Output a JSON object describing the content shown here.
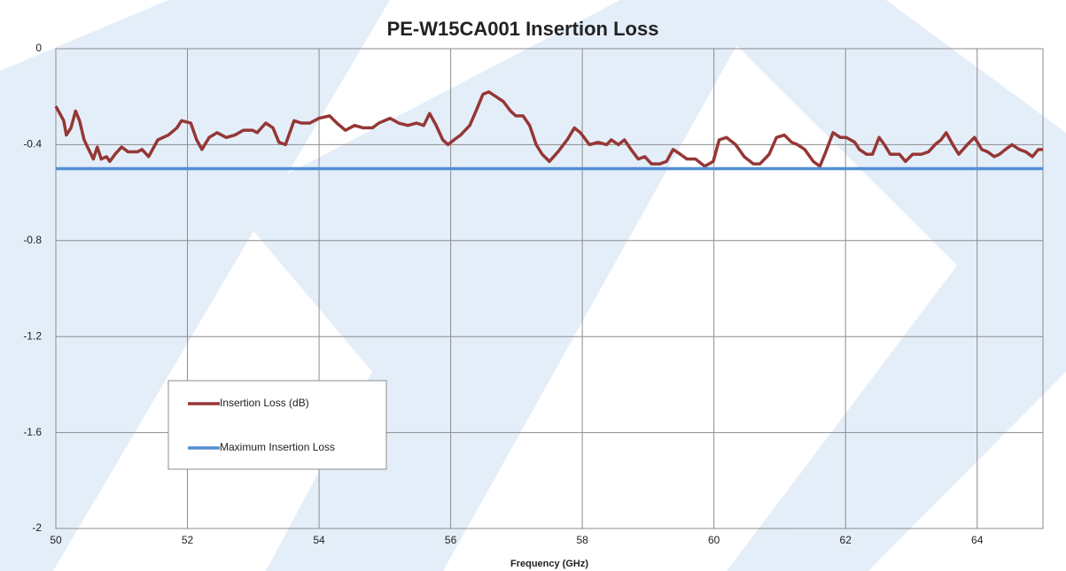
{
  "chart_data": {
    "type": "line",
    "title": "PE-W15CA001 Insertion Loss",
    "xlabel": "Frequency (GHz)",
    "xlim": [
      50,
      65
    ],
    "xticks": [
      50,
      52,
      54,
      56,
      58,
      60,
      62,
      64
    ],
    "ylim": [
      -2,
      0
    ],
    "yticks": [
      0,
      -0.4,
      -0.8,
      -1.2,
      -1.6,
      -2
    ],
    "grid": true,
    "legend": "left",
    "series": [
      {
        "name": "Insertion Loss (dB)",
        "color": "#953735",
        "x": [
          50.0,
          50.12,
          50.16,
          50.23,
          50.3,
          50.36,
          50.43,
          50.5,
          50.57,
          50.63,
          50.69,
          50.77,
          50.82,
          50.9,
          51.0,
          51.1,
          51.24,
          51.31,
          51.41,
          51.55,
          51.71,
          51.84,
          51.91,
          52.05,
          52.14,
          52.22,
          52.33,
          52.45,
          52.59,
          52.72,
          52.85,
          52.99,
          53.06,
          53.19,
          53.3,
          53.39,
          53.49,
          53.62,
          53.73,
          53.86,
          54.0,
          54.16,
          54.27,
          54.4,
          54.54,
          54.67,
          54.81,
          54.91,
          55.08,
          55.21,
          55.35,
          55.48,
          55.59,
          55.68,
          55.78,
          55.88,
          55.96,
          56.05,
          56.15,
          56.29,
          56.4,
          56.49,
          56.58,
          56.69,
          56.8,
          56.91,
          56.99,
          57.1,
          57.2,
          57.3,
          57.39,
          57.5,
          57.63,
          57.77,
          57.88,
          57.97,
          58.11,
          58.24,
          58.37,
          58.44,
          58.55,
          58.64,
          58.74,
          58.85,
          58.95,
          59.05,
          59.18,
          59.28,
          59.38,
          59.49,
          59.59,
          59.72,
          59.86,
          59.99,
          60.08,
          60.19,
          60.33,
          60.46,
          60.6,
          60.7,
          60.84,
          60.95,
          61.07,
          61.18,
          61.27,
          61.38,
          61.51,
          61.61,
          61.7,
          61.81,
          61.92,
          62.01,
          62.14,
          62.21,
          62.32,
          62.41,
          62.51,
          62.59,
          62.68,
          62.82,
          62.91,
          63.02,
          63.15,
          63.26,
          63.36,
          63.45,
          63.53,
          63.63,
          63.72,
          63.85,
          63.96,
          64.07,
          64.16,
          64.26,
          64.34,
          64.43,
          64.53,
          64.64,
          64.74,
          64.84,
          64.93,
          65.0
        ],
        "values": [
          -0.24,
          -0.3,
          -0.36,
          -0.33,
          -0.26,
          -0.3,
          -0.38,
          -0.42,
          -0.46,
          -0.41,
          -0.46,
          -0.45,
          -0.47,
          -0.44,
          -0.41,
          -0.43,
          -0.43,
          -0.42,
          -0.45,
          -0.38,
          -0.36,
          -0.33,
          -0.3,
          -0.31,
          -0.38,
          -0.42,
          -0.37,
          -0.35,
          -0.37,
          -0.36,
          -0.34,
          -0.34,
          -0.35,
          -0.31,
          -0.33,
          -0.39,
          -0.4,
          -0.3,
          -0.31,
          -0.31,
          -0.29,
          -0.28,
          -0.31,
          -0.34,
          -0.32,
          -0.33,
          -0.33,
          -0.31,
          -0.29,
          -0.31,
          -0.32,
          -0.31,
          -0.32,
          -0.27,
          -0.32,
          -0.38,
          -0.4,
          -0.38,
          -0.36,
          -0.32,
          -0.25,
          -0.19,
          -0.18,
          -0.2,
          -0.22,
          -0.26,
          -0.28,
          -0.28,
          -0.32,
          -0.4,
          -0.44,
          -0.47,
          -0.43,
          -0.38,
          -0.33,
          -0.35,
          -0.4,
          -0.39,
          -0.4,
          -0.38,
          -0.4,
          -0.38,
          -0.42,
          -0.46,
          -0.45,
          -0.48,
          -0.48,
          -0.47,
          -0.42,
          -0.44,
          -0.46,
          -0.46,
          -0.49,
          -0.47,
          -0.38,
          -0.37,
          -0.4,
          -0.45,
          -0.48,
          -0.48,
          -0.44,
          -0.37,
          -0.36,
          -0.39,
          -0.4,
          -0.42,
          -0.47,
          -0.49,
          -0.43,
          -0.35,
          -0.37,
          -0.37,
          -0.39,
          -0.42,
          -0.44,
          -0.44,
          -0.37,
          -0.4,
          -0.44,
          -0.44,
          -0.47,
          -0.44,
          -0.44,
          -0.43,
          -0.4,
          -0.38,
          -0.35,
          -0.4,
          -0.44,
          -0.4,
          -0.37,
          -0.42,
          -0.43,
          -0.45,
          -0.44,
          -0.42,
          -0.4,
          -0.42,
          -0.43,
          -0.45,
          -0.42,
          -0.42
        ]
      },
      {
        "name": "Maximum Insertion Loss",
        "color": "#558ed5",
        "x": [
          50,
          65
        ],
        "values": [
          -0.5,
          -0.5
        ]
      }
    ]
  }
}
